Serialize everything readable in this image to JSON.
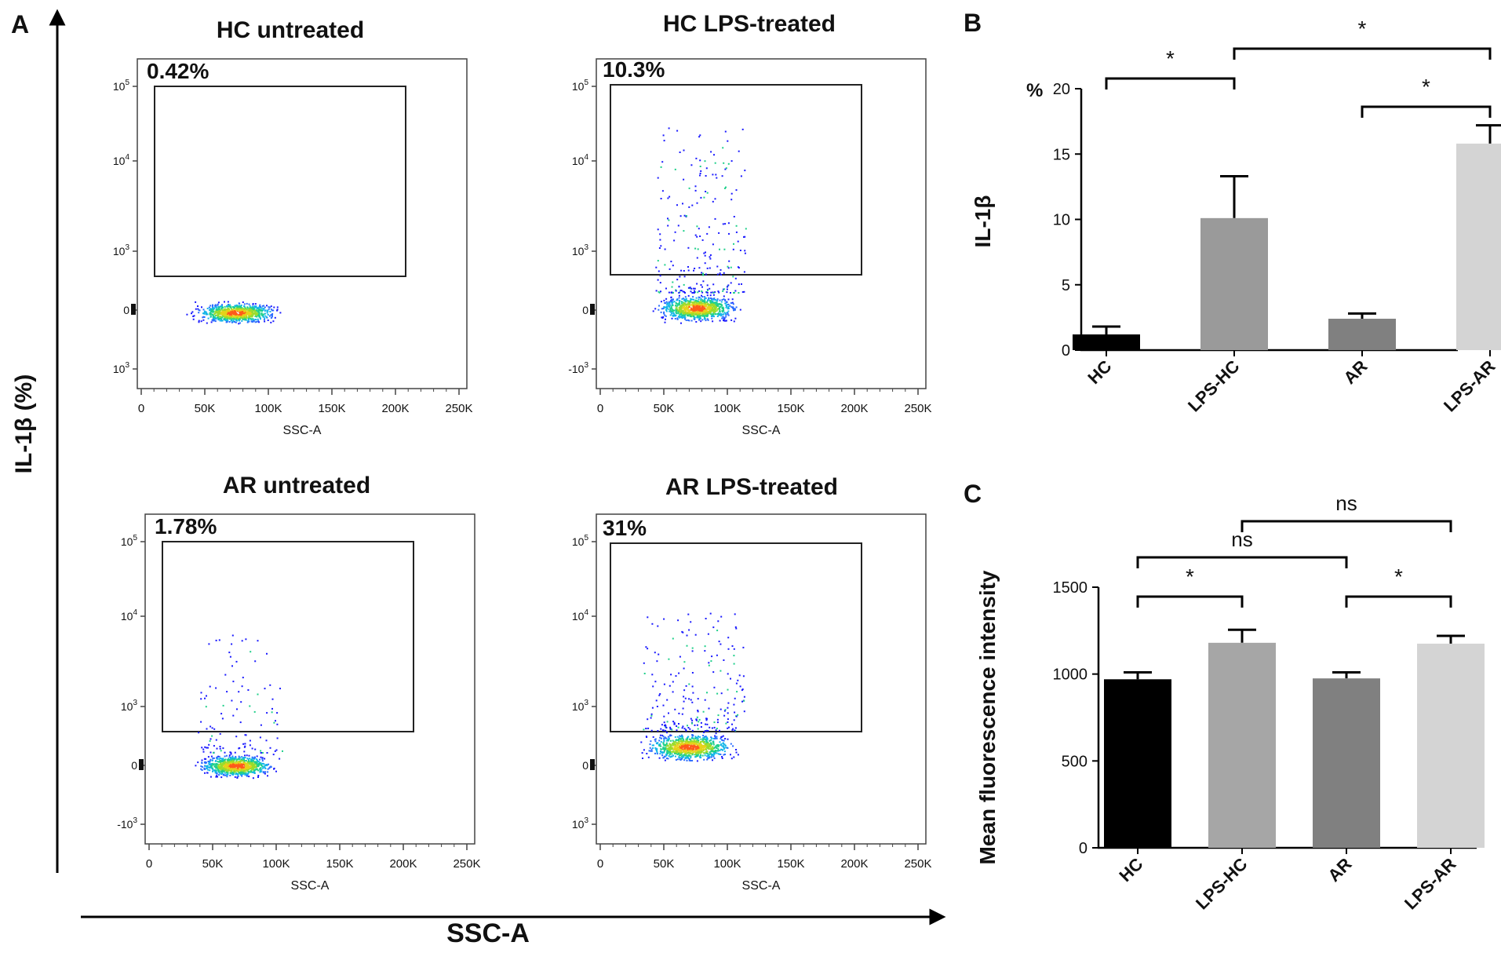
{
  "panel_letters": {
    "a": "A",
    "b": "B",
    "c": "C"
  },
  "panel_a": {
    "y_axis_title": "IL-1β (%)",
    "x_axis_title": "SSC-A",
    "plots": [
      {
        "title": "HC untreated",
        "gate_percent": "0.42%",
        "xlabel": "SSC-A",
        "x_ticks": [
          "0",
          "50K",
          "100K",
          "150K",
          "200K",
          "250K"
        ],
        "y_ticks": [
          "10^5",
          "10^4",
          "10^3",
          "0",
          "10^3"
        ]
      },
      {
        "title": "HC LPS-treated",
        "gate_percent": "10.3%",
        "xlabel": "SSC-A",
        "x_ticks": [
          "0",
          "50K",
          "100K",
          "150K",
          "200K",
          "250K"
        ],
        "y_ticks": [
          "10^5",
          "10^4",
          "10^3",
          "0",
          "-10^3"
        ]
      },
      {
        "title": "AR  untreated",
        "gate_percent": "1.78%",
        "xlabel": "SSC-A",
        "x_ticks": [
          "0",
          "50K",
          "100K",
          "150K",
          "200K",
          "250K"
        ],
        "y_ticks": [
          "10^5",
          "10^4",
          "10^3",
          "0",
          "-10^3"
        ]
      },
      {
        "title": "AR LPS-treated",
        "gate_percent": "31%",
        "xlabel": "SSC-A",
        "x_ticks": [
          "0",
          "50K",
          "100K",
          "150K",
          "200K",
          "250K"
        ],
        "y_ticks": [
          "10^5",
          "10^4",
          "10^3",
          "0",
          "10^3"
        ]
      }
    ]
  },
  "chart_data": [
    {
      "type": "bar",
      "panel": "B",
      "ylabel": "IL-1β",
      "yunit": "%",
      "categories": [
        "HC",
        "LPS-HC",
        "AR",
        "LPS-AR"
      ],
      "values": [
        1.2,
        10.1,
        2.4,
        15.8
      ],
      "errors": [
        0.6,
        3.2,
        0.4,
        1.4
      ],
      "colors": [
        "#000000",
        "#9a9a9a",
        "#808080",
        "#d4d4d4"
      ],
      "ylim": [
        0,
        20
      ],
      "yticks": [
        0,
        5,
        10,
        15,
        20
      ],
      "significance": [
        {
          "from": 0,
          "to": 1,
          "label": "*"
        },
        {
          "from": 2,
          "to": 3,
          "label": "*"
        },
        {
          "from": 1,
          "to": 3,
          "label": "*"
        }
      ]
    },
    {
      "type": "bar",
      "panel": "C",
      "ylabel": "Mean fluorescence intensity",
      "categories": [
        "HC",
        "LPS-HC",
        "AR",
        "LPS-AR"
      ],
      "values": [
        970,
        1180,
        975,
        1175
      ],
      "errors": [
        40,
        75,
        35,
        45
      ],
      "colors": [
        "#000000",
        "#a6a6a6",
        "#808080",
        "#d4d4d4"
      ],
      "ylim": [
        0,
        1500
      ],
      "yticks": [
        0,
        500,
        1000,
        1500
      ],
      "significance": [
        {
          "from": 0,
          "to": 1,
          "label": "*"
        },
        {
          "from": 2,
          "to": 3,
          "label": "*"
        },
        {
          "from": 0,
          "to": 2,
          "label": "ns"
        },
        {
          "from": 1,
          "to": 3,
          "label": "ns"
        }
      ]
    }
  ]
}
